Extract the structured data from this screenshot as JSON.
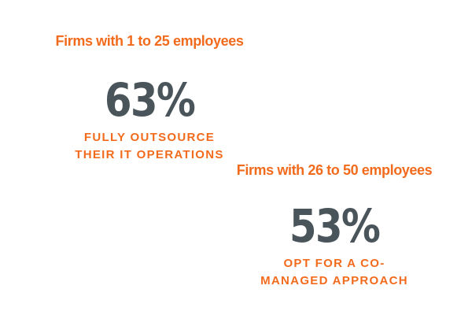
{
  "colors": {
    "accent": "#F26B1D",
    "number": "#4A555B",
    "background": "#FFFFFF"
  },
  "stats": [
    {
      "heading": "Firms with 1 to 25 employees",
      "value": "63%",
      "caption_line1": "FULLY OUTSOURCE",
      "caption_line2": "THEIR IT OPERATIONS"
    },
    {
      "heading": "Firms with 26 to 50 employees",
      "value": "53%",
      "caption_line1": "OPT FOR A CO-",
      "caption_line2": "MANAGED APPROACH"
    }
  ]
}
